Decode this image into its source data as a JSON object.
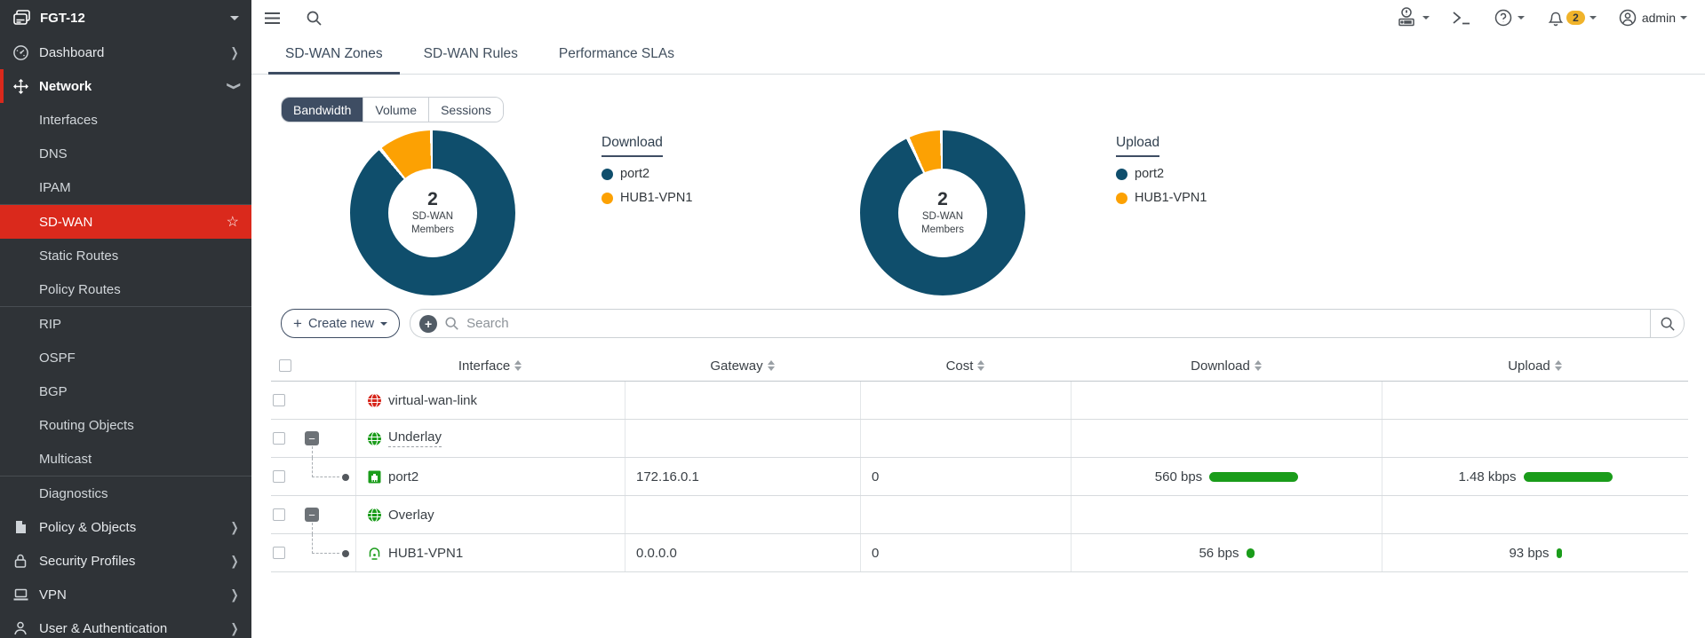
{
  "colors": {
    "red": "#da291c",
    "accent": "#3e4d63",
    "chart_navy": "#0f4e6c",
    "chart_orange": "#fca103",
    "green": "#1a9c1a"
  },
  "sidebar": {
    "logo": "FGT-12",
    "items": [
      {
        "label": "Dashboard"
      },
      {
        "label": "Network"
      },
      {
        "label": "Interfaces"
      },
      {
        "label": "DNS"
      },
      {
        "label": "IPAM"
      },
      {
        "label": "SD-WAN"
      },
      {
        "label": "Static Routes"
      },
      {
        "label": "Policy Routes"
      },
      {
        "label": "RIP"
      },
      {
        "label": "OSPF"
      },
      {
        "label": "BGP"
      },
      {
        "label": "Routing Objects"
      },
      {
        "label": "Multicast"
      },
      {
        "label": "Diagnostics"
      },
      {
        "label": "Policy & Objects"
      },
      {
        "label": "Security Profiles"
      },
      {
        "label": "VPN"
      },
      {
        "label": "User & Authentication"
      }
    ]
  },
  "topbar": {
    "notification_count": "2",
    "user": "admin"
  },
  "tabs": [
    {
      "label": "SD-WAN Zones"
    },
    {
      "label": "SD-WAN Rules"
    },
    {
      "label": "Performance SLAs"
    }
  ],
  "view_toggle": {
    "options": [
      "Bandwidth",
      "Volume",
      "Sessions"
    ],
    "active": "Bandwidth"
  },
  "charts": [
    {
      "title": "Download",
      "chart_data": {
        "type": "pie",
        "categories": [
          "port2",
          "HUB1-VPN1"
        ],
        "values": [
          90,
          10
        ],
        "colors": [
          "#0f4e6c",
          "#fca103"
        ],
        "center": {
          "value": "2",
          "label1": "SD-WAN",
          "label2": "Members"
        },
        "legend_position": "right"
      }
    },
    {
      "title": "Upload",
      "chart_data": {
        "type": "pie",
        "categories": [
          "port2",
          "HUB1-VPN1"
        ],
        "values": [
          94,
          6
        ],
        "colors": [
          "#0f4e6c",
          "#fca103"
        ],
        "center": {
          "value": "2",
          "label1": "SD-WAN",
          "label2": "Members"
        },
        "legend_position": "right"
      }
    }
  ],
  "toolbar": {
    "create_new_label": "Create new",
    "search_placeholder": "Search"
  },
  "table": {
    "columns": [
      "Interface",
      "Gateway",
      "Cost",
      "Download",
      "Upload"
    ],
    "rows": [
      {
        "label": "virtual-wan-link",
        "gateway": "",
        "cost": "",
        "download": "",
        "upload": "",
        "download_bar": 0,
        "upload_bar": 0
      },
      {
        "label": "Underlay",
        "gateway": "",
        "cost": "",
        "download": "",
        "upload": "",
        "download_bar": 0,
        "upload_bar": 0
      },
      {
        "label": "port2",
        "gateway": "172.16.0.1",
        "cost": "0",
        "download": "560 bps",
        "upload": "1.48 kbps",
        "download_bar": 100,
        "upload_bar": 100
      },
      {
        "label": "Overlay",
        "gateway": "",
        "cost": "",
        "download": "",
        "upload": "",
        "download_bar": 0,
        "upload_bar": 0
      },
      {
        "label": "HUB1-VPN1",
        "gateway": "0.0.0.0",
        "cost": "0",
        "download": "56 bps",
        "upload": "93 bps",
        "download_bar": 9,
        "upload_bar": 6
      }
    ]
  }
}
